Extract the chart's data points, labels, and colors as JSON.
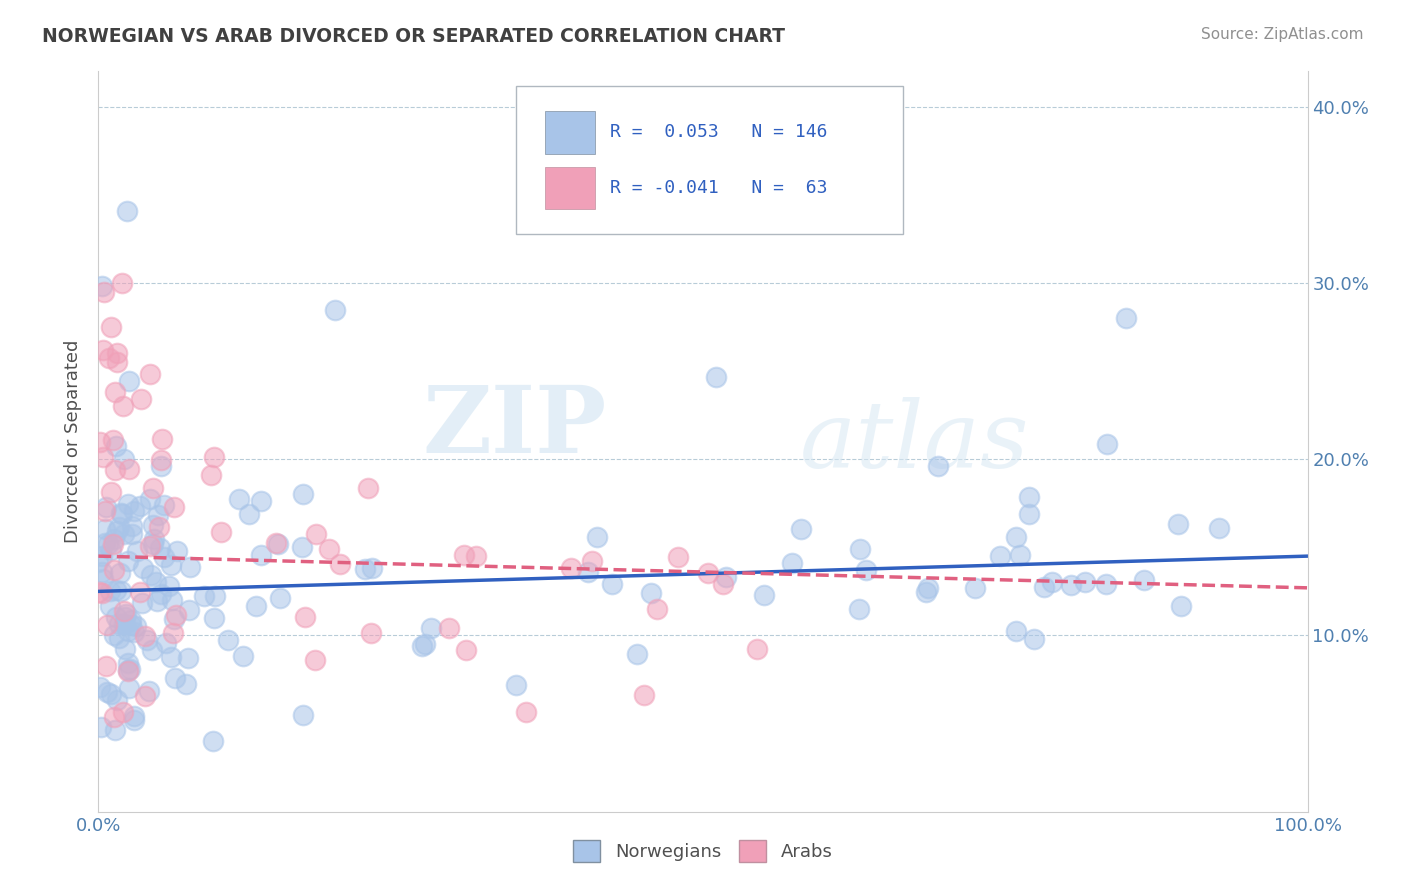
{
  "title": "NORWEGIAN VS ARAB DIVORCED OR SEPARATED CORRELATION CHART",
  "source": "Source: ZipAtlas.com",
  "ylabel": "Divorced or Separated",
  "xmin": 0.0,
  "xmax": 1.0,
  "ymin": 0.0,
  "ymax": 0.42,
  "norwegian_R": 0.053,
  "norwegian_N": 146,
  "arab_R": -0.041,
  "arab_N": 63,
  "norwegian_color": "#a8c4e8",
  "arab_color": "#f0a0b8",
  "trend_norwegian_color": "#3060c0",
  "trend_arab_color": "#e06080",
  "legend_box_norwegian": "#a8c4e8",
  "legend_box_arab": "#f0a0b8",
  "watermark_zip": "ZIP",
  "watermark_atlas": "atlas",
  "ytick_labels": [
    "",
    "10.0%",
    "20.0%",
    "30.0%",
    "40.0%"
  ],
  "xtick_labels": [
    "0.0%",
    "100.0%"
  ],
  "background_color": "#ffffff",
  "grid_color": "#b8ccd8",
  "title_color": "#404040",
  "axis_label_color": "#5080b0",
  "legend_text_color": "#3060c0"
}
